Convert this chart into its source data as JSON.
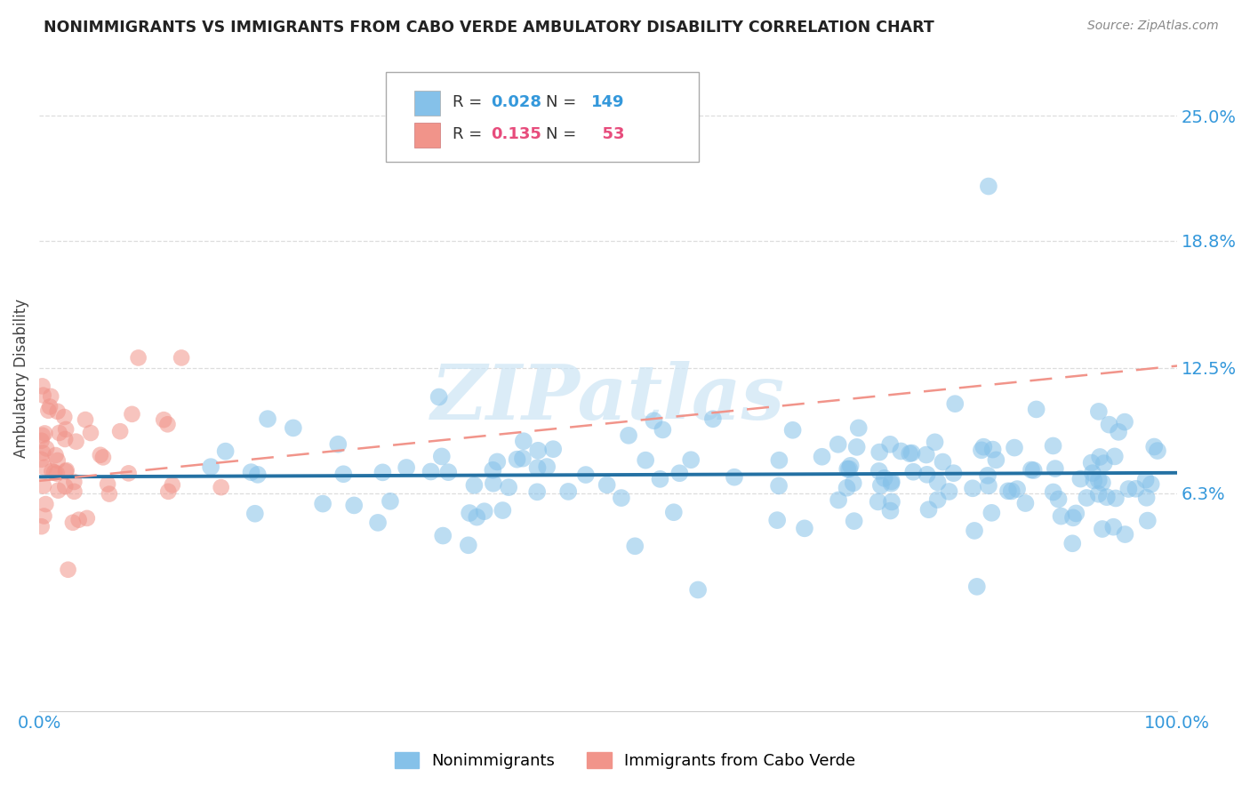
{
  "title": "NONIMMIGRANTS VS IMMIGRANTS FROM CABO VERDE AMBULATORY DISABILITY CORRELATION CHART",
  "source": "Source: ZipAtlas.com",
  "ylabel": "Ambulatory Disability",
  "legend_label1": "Nonimmigrants",
  "legend_label2": "Immigrants from Cabo Verde",
  "R1": 0.028,
  "N1": 149,
  "R2": 0.135,
  "N2": 53,
  "color_blue": "#85c1e9",
  "color_pink": "#f1948a",
  "color_blue_dark": "#2471a3",
  "color_pink_line": "#e74c7c",
  "color_pink_dashed": "#f1948a",
  "axis_color": "#3498db",
  "watermark": "ZIPatlas",
  "xlim": [
    0.0,
    1.0
  ],
  "ylim": [
    -0.045,
    0.285
  ],
  "yticks": [
    0.063,
    0.125,
    0.188,
    0.25
  ],
  "ytick_labels": [
    "6.3%",
    "12.5%",
    "18.8%",
    "25.0%"
  ],
  "xticks": [
    0.0,
    1.0
  ],
  "xtick_labels": [
    "0.0%",
    "100.0%"
  ],
  "background": "#ffffff",
  "grid_color": "#dddddd",
  "blue_line_intercept": 0.071,
  "blue_line_slope": 0.002,
  "pink_line_intercept": 0.069,
  "pink_line_slope": 0.057
}
